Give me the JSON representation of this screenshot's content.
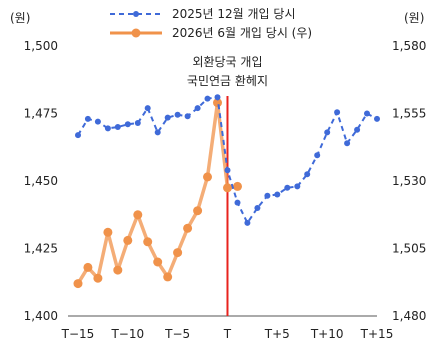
{
  "chart_data": {
    "type": "line",
    "left_unit": "(원)",
    "right_unit": "(원)",
    "x_tick_labels": [
      "T−15",
      "T−10",
      "T−5",
      "T",
      "T+5",
      "T+10",
      "T+15"
    ],
    "x_ticks": [
      -15,
      -10,
      -5,
      0,
      5,
      10,
      15
    ],
    "x_range": [
      -16,
      15
    ],
    "left_axis": {
      "range": [
        1400,
        1500
      ],
      "ticks": [
        1400,
        1425,
        1450,
        1475,
        1500
      ],
      "tick_labels": [
        "1,400",
        "1,425",
        "1,450",
        "1,475",
        "1,500"
      ]
    },
    "right_axis": {
      "range": [
        1480,
        1580
      ],
      "ticks": [
        1480,
        1505,
        1530,
        1555,
        1580
      ],
      "tick_labels": [
        "1,480",
        "1,505",
        "1,530",
        "1,555",
        "1,580"
      ]
    },
    "series": [
      {
        "name": "2025년 12월 개입 당시",
        "axis": "left",
        "color": "#3f6ad8",
        "style": "dashed",
        "points": [
          [
            -15,
            1467
          ],
          [
            -14,
            1473
          ],
          [
            -13,
            1472
          ],
          [
            -12,
            1469.5
          ],
          [
            -11,
            1470
          ],
          [
            -10,
            1471
          ],
          [
            -9,
            1471.5
          ],
          [
            -8,
            1477
          ],
          [
            -7,
            1468
          ],
          [
            -6,
            1473.5
          ],
          [
            -5,
            1474.5
          ],
          [
            -4,
            1474
          ],
          [
            -3,
            1477
          ],
          [
            -2,
            1480.5
          ],
          [
            -1,
            1481
          ],
          [
            0,
            1454
          ],
          [
            1,
            1442
          ],
          [
            2,
            1434.5
          ],
          [
            3,
            1440
          ],
          [
            4,
            1444.5
          ],
          [
            5,
            1445
          ],
          [
            6,
            1447.5
          ],
          [
            7,
            1448
          ],
          [
            8,
            1452.5
          ],
          [
            9,
            1459.5
          ],
          [
            10,
            1468
          ],
          [
            11,
            1475.5
          ],
          [
            12,
            1464
          ],
          [
            13,
            1469
          ],
          [
            14,
            1475
          ],
          [
            15,
            1473
          ]
        ]
      },
      {
        "name": "2026년 6월 개입 당시 (우)",
        "axis": "right",
        "color": "#f0924a",
        "style": "solid",
        "points": [
          [
            -15,
            1492
          ],
          [
            -14,
            1498
          ],
          [
            -13,
            1494
          ],
          [
            -12,
            1511
          ],
          [
            -11,
            1497
          ],
          [
            -10,
            1508
          ],
          [
            -9,
            1517.5
          ],
          [
            -8,
            1507.5
          ],
          [
            -7,
            1500
          ],
          [
            -6,
            1494.5
          ],
          [
            -5,
            1503.5
          ],
          [
            -4,
            1512.5
          ],
          [
            -3,
            1519
          ],
          [
            -2,
            1531.5
          ],
          [
            -1,
            1559
          ],
          [
            0,
            1527.5
          ],
          [
            1,
            1528
          ]
        ]
      }
    ],
    "event": {
      "x": 0,
      "label_lines": [
        "외환당국 개입",
        "국민연금 환헤지"
      ],
      "color": "#e8231e"
    }
  }
}
